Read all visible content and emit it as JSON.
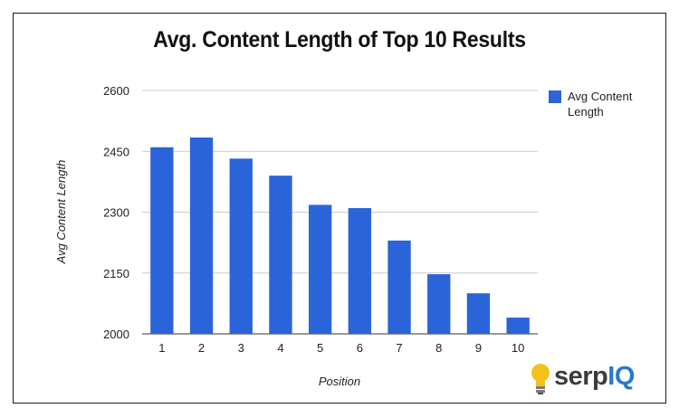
{
  "chart_data": {
    "type": "bar",
    "title": "Avg. Content Length of Top 10 Results",
    "xlabel": "Position",
    "ylabel": "Avg Content Length",
    "categories": [
      "1",
      "2",
      "3",
      "4",
      "5",
      "6",
      "7",
      "8",
      "9",
      "10"
    ],
    "series": [
      {
        "name": "Avg Content Length",
        "color": "#2b64d8",
        "values": [
          2460,
          2484,
          2432,
          2390,
          2318,
          2310,
          2230,
          2147,
          2100,
          2040
        ]
      }
    ],
    "ylim": [
      2000,
      2600
    ],
    "yticks": [
      "2000",
      "2150",
      "2300",
      "2450",
      "2600"
    ],
    "grid": true,
    "legend_position": "right"
  },
  "logo": {
    "brand_prefix": "serp",
    "brand_suffix": "IQ",
    "icon": "lightbulb-icon",
    "bulb_color": "#f2c21b"
  }
}
